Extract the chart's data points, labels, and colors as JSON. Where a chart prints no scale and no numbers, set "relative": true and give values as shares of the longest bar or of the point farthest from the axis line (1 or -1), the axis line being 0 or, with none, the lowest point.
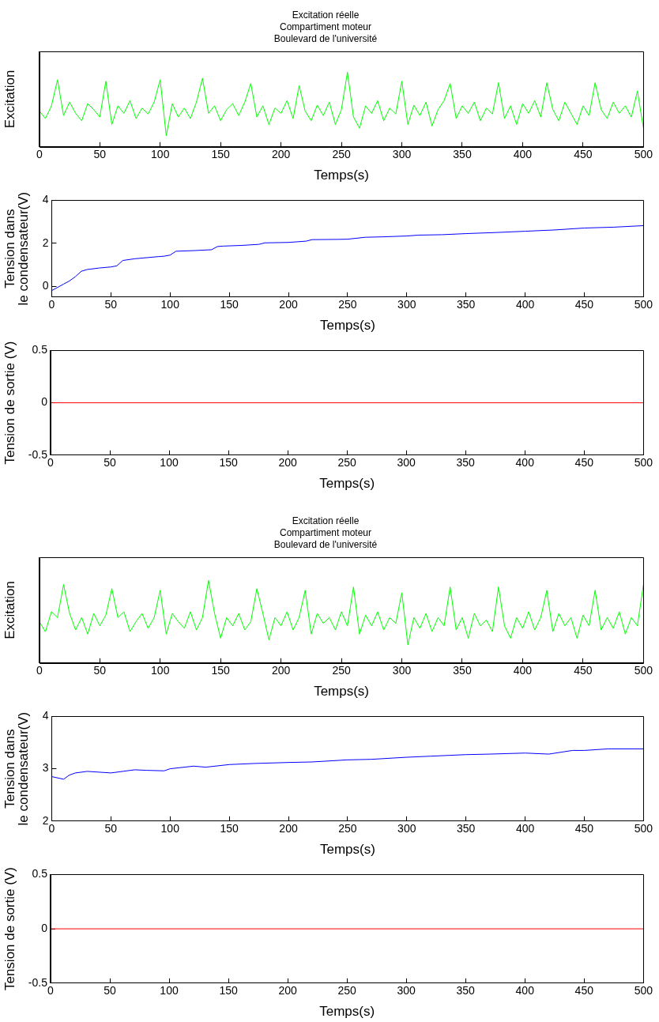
{
  "chart_data": [
    {
      "type": "line",
      "title": "Excitation réelle\nCompartiment moteur\nBoulevard de l'université",
      "xlabel": "Temps(s)",
      "ylabel": "Excitation",
      "relative": true,
      "xlim": [
        0,
        500
      ],
      "xticks": [
        0,
        50,
        100,
        150,
        200,
        250,
        300,
        350,
        400,
        450,
        500
      ],
      "grid": false,
      "legend": false,
      "marker": "none",
      "x": [
        0,
        5,
        10,
        15,
        20,
        25,
        30,
        35,
        40,
        45,
        50,
        55,
        60,
        65,
        70,
        75,
        80,
        85,
        90,
        95,
        100,
        105,
        110,
        115,
        120,
        125,
        130,
        135,
        140,
        145,
        150,
        155,
        160,
        165,
        170,
        175,
        180,
        185,
        190,
        195,
        200,
        205,
        210,
        215,
        220,
        225,
        230,
        235,
        240,
        245,
        250,
        255,
        260,
        265,
        270,
        275,
        280,
        285,
        290,
        295,
        300,
        305,
        310,
        315,
        320,
        325,
        330,
        335,
        340,
        345,
        350,
        355,
        360,
        365,
        370,
        375,
        380,
        385,
        390,
        395,
        400,
        405,
        410,
        415,
        420,
        425,
        430,
        435,
        440,
        445,
        450,
        455,
        460,
        465,
        470,
        475,
        480,
        485,
        490,
        495,
        500
      ],
      "series": [
        {
          "color": "#00ff00",
          "values": [
            0.48,
            0.38,
            0.55,
            0.9,
            0.42,
            0.6,
            0.45,
            0.35,
            0.58,
            0.5,
            0.4,
            0.88,
            0.3,
            0.55,
            0.45,
            0.62,
            0.38,
            0.52,
            0.44,
            0.6,
            0.9,
            0.15,
            0.58,
            0.4,
            0.52,
            0.38,
            0.6,
            0.92,
            0.45,
            0.55,
            0.35,
            0.5,
            0.58,
            0.42,
            0.6,
            0.85,
            0.4,
            0.55,
            0.3,
            0.52,
            0.45,
            0.62,
            0.38,
            0.82,
            0.48,
            0.35,
            0.56,
            0.42,
            0.6,
            0.3,
            0.5,
            1.0,
            0.4,
            0.25,
            0.55,
            0.45,
            0.62,
            0.35,
            0.52,
            0.44,
            0.88,
            0.3,
            0.56,
            0.42,
            0.6,
            0.28,
            0.5,
            0.62,
            0.85,
            0.38,
            0.55,
            0.45,
            0.6,
            0.35,
            0.52,
            0.44,
            0.86,
            0.38,
            0.55,
            0.3,
            0.58,
            0.45,
            0.62,
            0.4,
            0.86,
            0.5,
            0.35,
            0.6,
            0.45,
            0.3,
            0.55,
            0.42,
            0.86,
            0.5,
            0.38,
            0.6,
            0.45,
            0.55,
            0.4,
            0.75,
            0.25
          ]
        }
      ]
    },
    {
      "type": "line",
      "xlabel": "Temps(s)",
      "ylabel": "Tension dans\nle condensateur(V)",
      "xlim": [
        0,
        500
      ],
      "xticks": [
        0,
        50,
        100,
        150,
        200,
        250,
        300,
        350,
        400,
        450,
        500
      ],
      "ylim": [
        -0.5,
        4
      ],
      "yticks": [
        0,
        2,
        4
      ],
      "grid": false,
      "legend": false,
      "marker": "none",
      "x": [
        0,
        5,
        10,
        15,
        20,
        25,
        30,
        40,
        50,
        55,
        60,
        70,
        80,
        90,
        95,
        100,
        105,
        120,
        135,
        140,
        145,
        160,
        175,
        180,
        200,
        215,
        220,
        240,
        250,
        265,
        280,
        300,
        310,
        330,
        350,
        375,
        400,
        425,
        450,
        475,
        500
      ],
      "series": [
        {
          "color": "#0000ff",
          "values": [
            -0.2,
            -0.05,
            0.1,
            0.25,
            0.45,
            0.7,
            0.78,
            0.85,
            0.9,
            0.95,
            1.2,
            1.28,
            1.33,
            1.38,
            1.4,
            1.45,
            1.63,
            1.66,
            1.7,
            1.85,
            1.87,
            1.9,
            1.95,
            2.02,
            2.04,
            2.1,
            2.17,
            2.18,
            2.19,
            2.28,
            2.3,
            2.34,
            2.38,
            2.4,
            2.45,
            2.5,
            2.56,
            2.62,
            2.71,
            2.75,
            2.82
          ]
        }
      ]
    },
    {
      "type": "line",
      "xlabel": "Temps(s)",
      "ylabel": "Tension de sortie (V)",
      "xlim": [
        0,
        500
      ],
      "xticks": [
        0,
        50,
        100,
        150,
        200,
        250,
        300,
        350,
        400,
        450,
        500
      ],
      "ylim": [
        -0.5,
        0.5
      ],
      "yticks": [
        -0.5,
        0,
        0.5
      ],
      "grid": false,
      "legend": false,
      "marker": "none",
      "x": [
        0,
        500
      ],
      "series": [
        {
          "color": "#ff0000",
          "values": [
            0,
            0
          ]
        }
      ]
    },
    {
      "type": "line",
      "title": "Excitation réelle\nCompartiment moteur\nBoulevard de l'université",
      "xlabel": "Temps(s)",
      "ylabel": "Excitation",
      "relative": true,
      "xlim": [
        0,
        500
      ],
      "xticks": [
        0,
        50,
        100,
        150,
        200,
        250,
        300,
        350,
        400,
        450,
        500
      ],
      "grid": false,
      "legend": false,
      "marker": "none",
      "x": [
        0,
        5,
        10,
        15,
        20,
        25,
        30,
        35,
        40,
        45,
        50,
        55,
        60,
        65,
        70,
        75,
        80,
        85,
        90,
        95,
        100,
        105,
        110,
        115,
        120,
        125,
        130,
        135,
        140,
        145,
        150,
        155,
        160,
        165,
        170,
        175,
        180,
        185,
        190,
        195,
        200,
        205,
        210,
        215,
        220,
        225,
        230,
        235,
        240,
        245,
        250,
        255,
        260,
        265,
        270,
        275,
        280,
        285,
        290,
        295,
        300,
        305,
        310,
        315,
        320,
        325,
        330,
        335,
        340,
        345,
        350,
        355,
        360,
        365,
        370,
        375,
        380,
        385,
        390,
        395,
        400,
        405,
        410,
        415,
        420,
        425,
        430,
        435,
        440,
        445,
        450,
        455,
        460,
        465,
        470,
        475,
        480,
        485,
        490,
        495,
        500
      ],
      "series": [
        {
          "color": "#00ff00",
          "values": [
            0.5,
            0.38,
            0.62,
            0.55,
            0.95,
            0.6,
            0.4,
            0.55,
            0.35,
            0.6,
            0.45,
            0.58,
            0.9,
            0.55,
            0.62,
            0.38,
            0.5,
            0.6,
            0.42,
            0.55,
            0.88,
            0.35,
            0.6,
            0.5,
            0.42,
            0.62,
            0.4,
            0.55,
            1.0,
            0.6,
            0.3,
            0.55,
            0.45,
            0.6,
            0.4,
            0.5,
            0.9,
            0.6,
            0.28,
            0.55,
            0.45,
            0.62,
            0.4,
            0.55,
            0.88,
            0.35,
            0.6,
            0.48,
            0.55,
            0.4,
            0.62,
            0.45,
            0.92,
            0.35,
            0.58,
            0.45,
            0.62,
            0.4,
            0.55,
            0.48,
            0.85,
            0.22,
            0.55,
            0.42,
            0.6,
            0.38,
            0.55,
            0.45,
            0.92,
            0.4,
            0.55,
            0.3,
            0.6,
            0.45,
            0.52,
            0.38,
            0.92,
            0.45,
            0.3,
            0.55,
            0.42,
            0.62,
            0.4,
            0.55,
            0.88,
            0.38,
            0.6,
            0.45,
            0.55,
            0.3,
            0.58,
            0.45,
            0.88,
            0.4,
            0.55,
            0.42,
            0.62,
            0.35,
            0.55,
            0.45,
            0.95
          ]
        }
      ]
    },
    {
      "type": "line",
      "xlabel": "Temps(s)",
      "ylabel": "Tension dans\nle condensateur(V)",
      "xlim": [
        0,
        500
      ],
      "xticks": [
        0,
        50,
        100,
        150,
        200,
        250,
        300,
        350,
        400,
        450,
        500
      ],
      "ylim": [
        2,
        4
      ],
      "yticks": [
        2,
        3,
        4
      ],
      "grid": false,
      "legend": false,
      "marker": "none",
      "x": [
        0,
        10,
        15,
        20,
        30,
        50,
        60,
        70,
        80,
        95,
        100,
        120,
        130,
        150,
        170,
        200,
        220,
        250,
        270,
        300,
        320,
        350,
        370,
        400,
        420,
        440,
        450,
        470,
        500
      ],
      "series": [
        {
          "color": "#0000ff",
          "values": [
            2.85,
            2.8,
            2.88,
            2.92,
            2.95,
            2.92,
            2.95,
            2.98,
            2.97,
            2.96,
            3.0,
            3.05,
            3.03,
            3.08,
            3.1,
            3.12,
            3.13,
            3.17,
            3.18,
            3.22,
            3.24,
            3.27,
            3.28,
            3.3,
            3.28,
            3.35,
            3.35,
            3.38,
            3.38
          ]
        }
      ]
    },
    {
      "type": "line",
      "xlabel": "Temps(s)",
      "ylabel": "Tension de sortie (V)",
      "xlim": [
        0,
        500
      ],
      "xticks": [
        0,
        50,
        100,
        150,
        200,
        250,
        300,
        350,
        400,
        450,
        500
      ],
      "ylim": [
        -0.5,
        0.5
      ],
      "yticks": [
        -0.5,
        0,
        0.5
      ],
      "grid": false,
      "legend": false,
      "marker": "none",
      "x": [
        0,
        500
      ],
      "series": [
        {
          "color": "#ff0000",
          "values": [
            0,
            0
          ]
        }
      ]
    }
  ]
}
